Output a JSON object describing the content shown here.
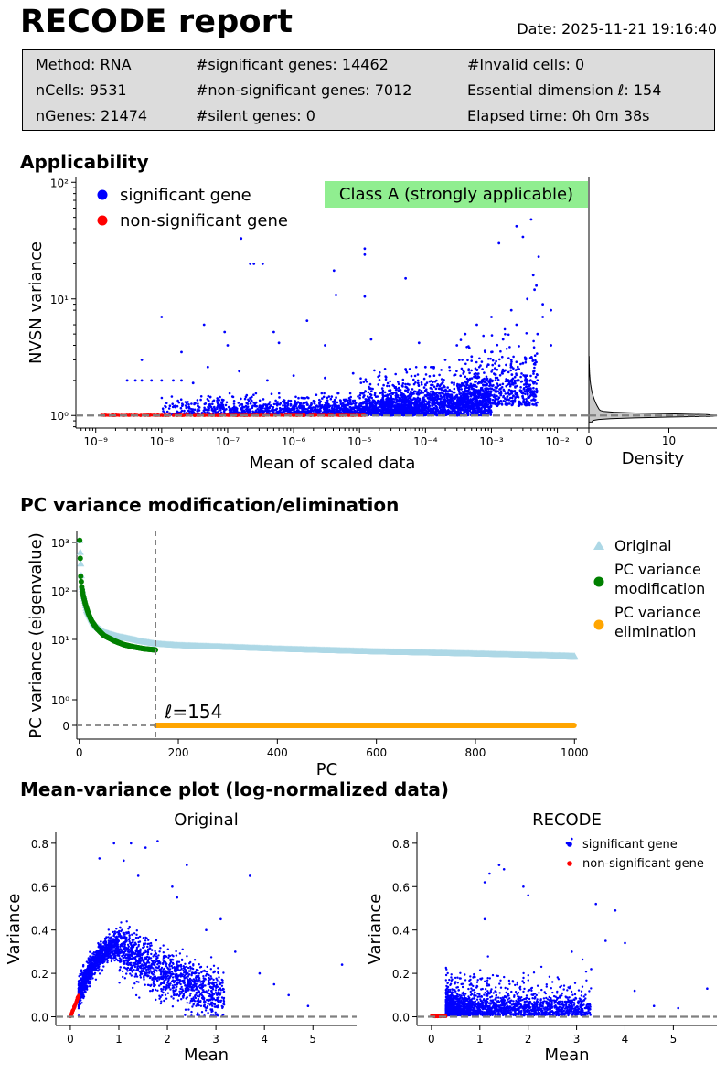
{
  "report": {
    "title": "RECODE report",
    "date": "Date: 2025-11-21 19:16:40"
  },
  "summary": {
    "col1": [
      "Method: RNA",
      "nCells: 9531",
      "nGenes: 21474"
    ],
    "col2": [
      "#significant genes: 14462",
      "#non-significant genes: 7012",
      "#silent genes: 0"
    ],
    "col3": [
      "#Invalid cells: 0",
      "Essential dimension ℓ: 154",
      "Elapsed time: 0h 0m 38s"
    ]
  },
  "colors": {
    "significant": "#0000ff",
    "non_significant": "#ff0000",
    "original": "#add8e6",
    "modification": "#008000",
    "elimination": "#ffa500",
    "class_badge": "#90ee90",
    "summary_bg": "#dcdcdc"
  },
  "sections": {
    "applicability": "Applicability",
    "pc": "PC variance modification/elimination",
    "meanvar": "Mean-variance plot (log-normalized data)"
  },
  "chart_data": [
    {
      "id": "applicability",
      "type": "scatter",
      "title": "Applicability",
      "xlabel": "Mean of scaled data",
      "ylabel": "NVSN variance",
      "xscale": "log",
      "yscale": "log",
      "xlim": [
        5e-10,
        0.03
      ],
      "ylim": [
        0.78,
        110
      ],
      "xtick_labels": [
        "10⁻⁹",
        "10⁻⁸",
        "10⁻⁷",
        "10⁻⁶",
        "10⁻⁵",
        "10⁻⁴",
        "10⁻³",
        "10⁻²"
      ],
      "ytick_labels": [
        "10⁰",
        "10¹",
        "10²"
      ],
      "reference_line": 1,
      "legend": [
        "significant gene",
        "non-significant gene"
      ],
      "legend_position": "top-left",
      "class_label": "Class A (strongly applicable)",
      "series": [
        {
          "name": "significant gene",
          "color": "#0000ff",
          "points": [
            [
              0.004,
              48
            ],
            [
              0.0024,
              42
            ],
            [
              0.003,
              34
            ],
            [
              0.0013,
              30
            ],
            [
              1.6e-07,
              33
            ],
            [
              1.2e-05,
              27
            ],
            [
              1.2e-05,
              24
            ],
            [
              0.0052,
              23
            ],
            [
              2.2e-07,
              20
            ],
            [
              2.5e-07,
              20
            ],
            [
              3.4e-07,
              20
            ],
            [
              4.1e-06,
              17.5
            ],
            [
              0.0043,
              16
            ],
            [
              5e-05,
              15
            ],
            [
              0.0048,
              13
            ],
            [
              0.0045,
              12
            ],
            [
              1.2e-05,
              10.5
            ],
            [
              4.4e-06,
              10.8
            ],
            [
              0.0035,
              10
            ],
            [
              0.006,
              9
            ],
            [
              0.008,
              8
            ],
            [
              0.006,
              7
            ],
            [
              1e-08,
              7
            ],
            [
              4.4e-08,
              6
            ],
            [
              1.6e-06,
              6.5
            ],
            [
              9e-08,
              5.2
            ],
            [
              5e-07,
              5.2
            ],
            [
              0.0004,
              5
            ],
            [
              0.0006,
              6
            ],
            [
              0.001,
              7
            ],
            [
              0.002,
              8
            ],
            [
              0.0024,
              6
            ],
            [
              0.0015,
              4.5
            ],
            [
              0.0003,
              4
            ],
            [
              8e-05,
              4.2
            ],
            [
              1.5e-05,
              4.5
            ],
            [
              3e-06,
              4
            ],
            [
              6e-07,
              4.2
            ],
            [
              1e-07,
              4
            ],
            [
              2e-08,
              3.5
            ],
            [
              5e-09,
              3
            ],
            [
              3e-09,
              2
            ],
            [
              5e-09,
              2
            ],
            [
              7e-09,
              2
            ],
            [
              1e-08,
              2
            ],
            [
              1.5e-08,
              2
            ],
            [
              2e-08,
              2
            ],
            [
              4e-09,
              2
            ],
            [
              0.001,
              3.5
            ],
            [
              0.002,
              3
            ],
            [
              0.003,
              2.8
            ],
            [
              0.0005,
              3.2
            ],
            [
              0.0002,
              3
            ],
            [
              0.0001,
              2.6
            ],
            [
              5e-05,
              2.5
            ],
            [
              2e-05,
              2.2
            ],
            [
              8e-06,
              2.3
            ],
            [
              3e-06,
              2.1
            ],
            [
              1e-06,
              2.2
            ],
            [
              4e-07,
              2
            ],
            [
              1.5e-07,
              2.4
            ],
            [
              5e-08,
              2.6
            ],
            [
              3e-08,
              1.9
            ],
            [
              0.008,
              4
            ],
            [
              0.005,
              5
            ]
          ],
          "clusters": [
            {
              "x_range": [
                1e-08,
                0.0001
              ],
              "y_range": [
                1.0,
                1.55
              ],
              "n": 1600
            },
            {
              "x_range": [
                1e-05,
                0.001
              ],
              "y_range": [
                1.0,
                2.6
              ],
              "n": 1500
            },
            {
              "x_range": [
                0.0003,
                0.005
              ],
              "y_range": [
                1.2,
                5.5
              ],
              "n": 500
            }
          ]
        },
        {
          "name": "non-significant gene",
          "color": "#ff0000",
          "y_value": 1,
          "x_range": [
            1.2e-09,
            1.2e-05
          ]
        }
      ],
      "density": {
        "xlabel": "Density",
        "xtick_labels": [
          "0",
          "10"
        ],
        "xlim": [
          0,
          16
        ],
        "peak_y": 1.0,
        "peak_density": 15.2
      }
    },
    {
      "id": "pc-variance",
      "type": "scatter",
      "title": "PC variance modification/elimination",
      "xlabel": "PC",
      "ylabel": "PC variance (eigenvalue)",
      "xlim": [
        -5,
        1005
      ],
      "xtick_labels": [
        "0",
        "200",
        "400",
        "600",
        "800",
        "1000"
      ],
      "ytick_labels": [
        "0",
        "10⁰",
        "10¹",
        "10²",
        "10³"
      ],
      "essential_dimension": 154,
      "annotation": "ℓ=154",
      "legend": [
        "Original",
        "PC variance\nmodification",
        "PC variance\nelimination"
      ],
      "legend_position": "outside-right",
      "series": [
        {
          "name": "Original",
          "color": "#add8e6",
          "marker": "triangle",
          "curve": [
            [
              1,
              1100
            ],
            [
              5,
              120
            ],
            [
              15,
              40
            ],
            [
              30,
              20
            ],
            [
              50,
              14
            ],
            [
              80,
              11.5
            ],
            [
              120,
              9.5
            ],
            [
              154,
              8.5
            ],
            [
              200,
              8
            ],
            [
              300,
              7.5
            ],
            [
              400,
              7
            ],
            [
              600,
              6.3
            ],
            [
              800,
              5.8
            ],
            [
              1000,
              5.3
            ]
          ]
        },
        {
          "name": "PC variance modification",
          "color": "#008000",
          "marker": "circle",
          "curve": [
            [
              1,
              1100
            ],
            [
              3,
              200
            ],
            [
              5,
              120
            ],
            [
              8,
              80
            ],
            [
              12,
              55
            ],
            [
              18,
              35
            ],
            [
              25,
              24
            ],
            [
              35,
              17
            ],
            [
              50,
              12
            ],
            [
              70,
              9.5
            ],
            [
              90,
              8.2
            ],
            [
              110,
              7.5
            ],
            [
              130,
              7
            ],
            [
              154,
              6.7
            ]
          ]
        },
        {
          "name": "PC variance elimination",
          "color": "#ffa500",
          "marker": "circle",
          "x_range": [
            155,
            1000
          ],
          "value": 0
        }
      ]
    },
    {
      "id": "meanvar-original",
      "type": "scatter",
      "title": "Original",
      "xlabel": "Mean",
      "ylabel": "Variance",
      "xlim": [
        -0.3,
        5.9
      ],
      "ylim": [
        -0.04,
        0.85
      ],
      "xtick_labels": [
        "0",
        "1",
        "2",
        "3",
        "4",
        "5"
      ],
      "ytick_labels": [
        "0.0",
        "0.2",
        "0.4",
        "0.6",
        "0.8"
      ],
      "reference_line": 0,
      "series": [
        {
          "name": "significant gene",
          "color": "#0000ff",
          "points": [
            [
              0.9,
              0.8
            ],
            [
              1.25,
              0.8
            ],
            [
              1.8,
              0.81
            ],
            [
              1.55,
              0.78
            ],
            [
              0.6,
              0.73
            ],
            [
              1.1,
              0.72
            ],
            [
              2.4,
              0.7
            ],
            [
              3.7,
              0.65
            ],
            [
              1.4,
              0.65
            ],
            [
              2.1,
              0.6
            ],
            [
              2.2,
              0.55
            ],
            [
              3.1,
              0.45
            ],
            [
              2.8,
              0.4
            ],
            [
              3.4,
              0.3
            ],
            [
              3.9,
              0.2
            ],
            [
              4.2,
              0.15
            ],
            [
              4.5,
              0.1
            ],
            [
              5.6,
              0.24
            ],
            [
              4.9,
              0.05
            ]
          ],
          "band": {
            "peak_x": 1.0,
            "peak_y": 0.33,
            "n": 2200
          }
        },
        {
          "name": "non-significant gene",
          "color": "#ff0000",
          "x_range": [
            0,
            0.17
          ]
        }
      ]
    },
    {
      "id": "meanvar-recode",
      "type": "scatter",
      "title": "RECODE",
      "xlabel": "Mean",
      "ylabel": "Variance",
      "xlim": [
        -0.3,
        5.9
      ],
      "ylim": [
        -0.04,
        0.85
      ],
      "xtick_labels": [
        "0",
        "1",
        "2",
        "3",
        "4",
        "5"
      ],
      "ytick_labels": [
        "0.0",
        "0.2",
        "0.4",
        "0.6",
        "0.8"
      ],
      "reference_line": 0,
      "legend": [
        "significant gene",
        "non-significant gene"
      ],
      "legend_position": "top-right",
      "series": [
        {
          "name": "significant gene",
          "color": "#0000ff",
          "points": [
            [
              2.8,
              0.8
            ],
            [
              2.9,
              0.82
            ],
            [
              1.4,
              0.7
            ],
            [
              1.5,
              0.68
            ],
            [
              1.2,
              0.66
            ],
            [
              1.1,
              0.62
            ],
            [
              1.9,
              0.6
            ],
            [
              2,
              0.56
            ],
            [
              3.4,
              0.52
            ],
            [
              3.8,
              0.49
            ],
            [
              1.1,
              0.45
            ],
            [
              3.6,
              0.35
            ],
            [
              4.0,
              0.34
            ],
            [
              2.9,
              0.3
            ],
            [
              3.3,
              0.22
            ],
            [
              4.2,
              0.12
            ],
            [
              5.7,
              0.13
            ],
            [
              4.6,
              0.05
            ],
            [
              5.1,
              0.04
            ]
          ],
          "band": {
            "peak_x": 1.0,
            "peak_y": 0.06,
            "n": 2000
          }
        },
        {
          "name": "non-significant gene",
          "color": "#ff0000",
          "x_range": [
            0,
            0.3
          ]
        }
      ]
    }
  ]
}
